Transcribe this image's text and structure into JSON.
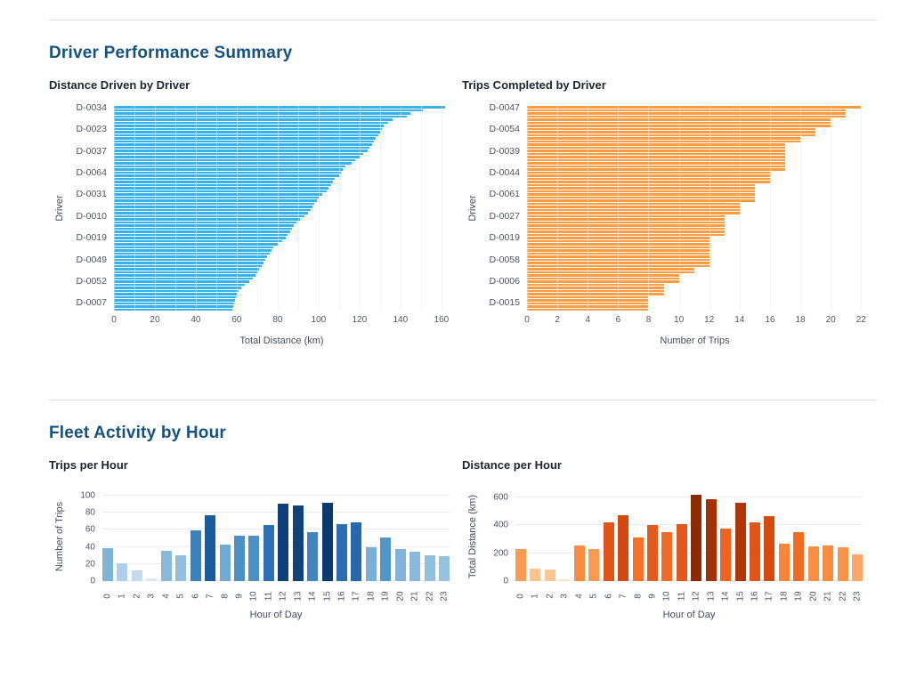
{
  "theme": {
    "heading_color": "#15537e",
    "grid_color": "#e8eaef"
  },
  "sections": [
    {
      "title": "Driver Performance Summary"
    },
    {
      "title": "Fleet Activity by Hour"
    }
  ],
  "chart_data": [
    {
      "id": "distance_by_driver",
      "type": "bar",
      "orientation": "horizontal",
      "title": "Distance Driven by Driver",
      "xlabel": "Total Distance (km)",
      "ylabel": "Driver",
      "x_ticks": [
        0,
        20,
        40,
        60,
        80,
        100,
        120,
        140,
        160
      ],
      "grid_step": 10,
      "grid_max": 160,
      "xmax": 164,
      "bar_color": "#38b1e7",
      "y_tick_labels": [
        "D-0034",
        "D-0023",
        "D-0037",
        "D-0064",
        "D-0031",
        "D-0010",
        "D-0019",
        "D-0049",
        "D-0052",
        "D-0007"
      ],
      "y_tick_every": 7,
      "values": [
        162,
        151,
        145,
        143,
        136,
        134,
        132,
        131,
        130,
        129,
        128,
        127,
        126,
        125,
        124,
        122,
        120,
        118,
        116,
        113,
        112,
        111,
        110,
        108,
        107,
        106,
        105,
        104,
        102,
        100,
        99,
        98,
        97,
        96,
        95,
        93,
        91,
        89,
        88,
        87,
        86,
        85,
        84,
        82,
        80,
        78,
        77,
        76,
        75,
        74,
        73,
        72,
        71,
        70,
        69,
        68,
        66,
        64,
        62,
        61,
        60,
        59.5,
        59,
        58.7,
        58.3,
        58
      ]
    },
    {
      "id": "trips_by_driver",
      "type": "bar",
      "orientation": "horizontal",
      "title": "Trips Completed by Driver",
      "xlabel": "Number of Trips",
      "ylabel": "Driver",
      "x_ticks": [
        0,
        2,
        4,
        6,
        8,
        10,
        12,
        14,
        16,
        18,
        20,
        22
      ],
      "grid_step": 2,
      "grid_max": 22,
      "xmax": 22.1,
      "bar_color": "#f99d44",
      "y_tick_labels": [
        "D-0047",
        "D-0054",
        "D-0039",
        "D-0044",
        "D-0061",
        "D-0027",
        "D-0019",
        "D-0058",
        "D-0006",
        "D-0015"
      ],
      "y_tick_every": 7,
      "values": [
        22,
        21,
        21,
        21,
        20,
        20,
        20,
        19,
        19,
        19,
        18,
        18,
        17,
        17,
        17,
        17,
        17,
        17,
        17,
        17,
        17,
        16,
        16,
        16,
        16,
        15,
        15,
        15,
        15,
        15,
        15,
        14,
        14,
        14,
        14,
        13,
        13,
        13,
        13,
        13,
        13,
        13,
        12,
        12,
        12,
        12,
        12,
        12,
        12,
        12,
        12,
        12,
        11,
        11,
        10,
        10,
        10,
        9,
        9,
        9,
        9,
        8,
        8,
        8,
        8,
        8
      ]
    },
    {
      "id": "trips_per_hour",
      "type": "bar",
      "orientation": "vertical",
      "title": "Trips per Hour",
      "xlabel": "Hour of Day",
      "ylabel": "Number of Trips",
      "categories": [
        "0",
        "1",
        "2",
        "3",
        "4",
        "5",
        "6",
        "7",
        "8",
        "9",
        "10",
        "11",
        "12",
        "13",
        "14",
        "15",
        "16",
        "17",
        "18",
        "19",
        "20",
        "21",
        "22",
        "23"
      ],
      "y_ticks": [
        0,
        20,
        40,
        60,
        80,
        100
      ],
      "ymax": 105,
      "values": [
        38,
        21,
        13,
        3,
        35,
        30,
        59,
        77,
        43,
        53,
        53,
        66,
        90,
        88,
        57,
        92,
        67,
        69,
        40,
        51,
        37,
        34,
        30,
        29
      ],
      "colors": [
        "#7fb3d8",
        "#adcfe7",
        "#c3daef",
        "#d8e7f5",
        "#87b9db",
        "#93bfde",
        "#3c80bc",
        "#1b5b9c",
        "#70abd2",
        "#4c90c4",
        "#4c90c4",
        "#2c70b3",
        "#0f3f78",
        "#114278",
        "#4184be",
        "#0c396e",
        "#2a6db0",
        "#2668ab",
        "#7ab0d5",
        "#5295c7",
        "#81b4d8",
        "#8abadb",
        "#93bfde",
        "#96c1df"
      ]
    },
    {
      "id": "distance_per_hour",
      "type": "bar",
      "orientation": "vertical",
      "title": "Distance per Hour",
      "xlabel": "Hour of Day",
      "ylabel": "Total Distance (km)",
      "categories": [
        "0",
        "1",
        "2",
        "3",
        "4",
        "5",
        "6",
        "7",
        "8",
        "9",
        "10",
        "11",
        "12",
        "13",
        "14",
        "15",
        "16",
        "17",
        "18",
        "19",
        "20",
        "21",
        "22",
        "23"
      ],
      "y_ticks": [
        0,
        200,
        400,
        600
      ],
      "ymax": 645,
      "values": [
        230,
        90,
        80,
        10,
        255,
        230,
        420,
        470,
        315,
        405,
        350,
        410,
        620,
        590,
        375,
        560,
        420,
        465,
        270,
        350,
        250,
        255,
        240,
        190
      ],
      "colors": [
        "#fb9a51",
        "#fdc28d",
        "#fdc591",
        "#fee3c8",
        "#fb8b3e",
        "#fb9a51",
        "#e2531a",
        "#d4480f",
        "#f87127",
        "#e55a1d",
        "#f36a23",
        "#e4571c",
        "#8a2b04",
        "#a33105",
        "#ef6320",
        "#b03507",
        "#e2531a",
        "#d64a10",
        "#fb8435",
        "#f36a23",
        "#fb8e44",
        "#fb8b3e",
        "#fb9449",
        "#fca668"
      ]
    }
  ]
}
